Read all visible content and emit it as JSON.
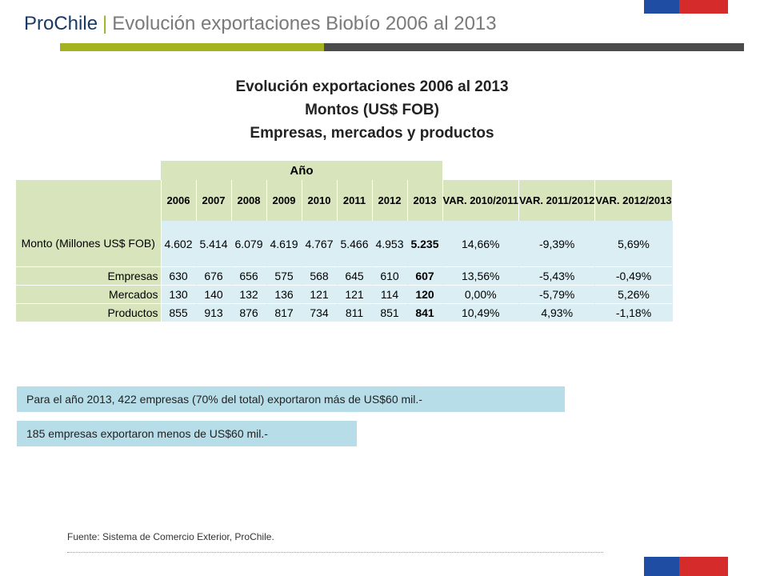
{
  "header": {
    "brand": "ProChile",
    "separator": "|",
    "title": "Evolución exportaciones Biobío 2006 al 2013"
  },
  "headline": {
    "line1": "Evolución exportaciones 2006 al 2013",
    "line2": "Montos (US$ FOB)",
    "line3": "Empresas, mercados y productos"
  },
  "table": {
    "group_header": "Año",
    "years": [
      "2006",
      "2007",
      "2008",
      "2009",
      "2010",
      "2011",
      "2012",
      "2013"
    ],
    "var_headers": [
      "VAR. 2010/2011",
      "VAR. 2011/2012",
      "VAR. 2012/2013"
    ],
    "rows": [
      {
        "label": "Monto (Millones US$ FOB)",
        "values": [
          "4.602",
          "5.414",
          "6.079",
          "4.619",
          "4.767",
          "5.466",
          "4.953",
          "5.235"
        ],
        "vars": [
          "14,66%",
          "-9,39%",
          "5,69%"
        ]
      },
      {
        "label": "Empresas",
        "values": [
          "630",
          "676",
          "656",
          "575",
          "568",
          "645",
          "610",
          "607"
        ],
        "vars": [
          "13,56%",
          "-5,43%",
          "-0,49%"
        ]
      },
      {
        "label": "Mercados",
        "values": [
          "130",
          "140",
          "132",
          "136",
          "121",
          "121",
          "114",
          "120"
        ],
        "vars": [
          "0,00%",
          "-5,79%",
          "5,26%"
        ]
      },
      {
        "label": "Productos",
        "values": [
          "855",
          "913",
          "876",
          "817",
          "734",
          "811",
          "851",
          "841"
        ],
        "vars": [
          "10,49%",
          "4,93%",
          "-1,18%"
        ]
      }
    ]
  },
  "callouts": [
    "Para el año 2013, 422 empresas (70% del total) exportaron más de US$60 mil.-",
    "185 empresas exportaron menos de US$60 mil.-"
  ],
  "source": "Fuente: Sistema de Comercio Exterior, ProChile.",
  "colors": {
    "brand_blue": "#1a3a66",
    "accent_green": "#a3b21e",
    "header_gray": "#4b4b4b",
    "table_green": "#d8e4bc",
    "table_blue": "#dbeef3",
    "callout_blue": "#b7dde8",
    "flag_blue": "#1f4da3",
    "flag_red": "#d52b2b"
  }
}
